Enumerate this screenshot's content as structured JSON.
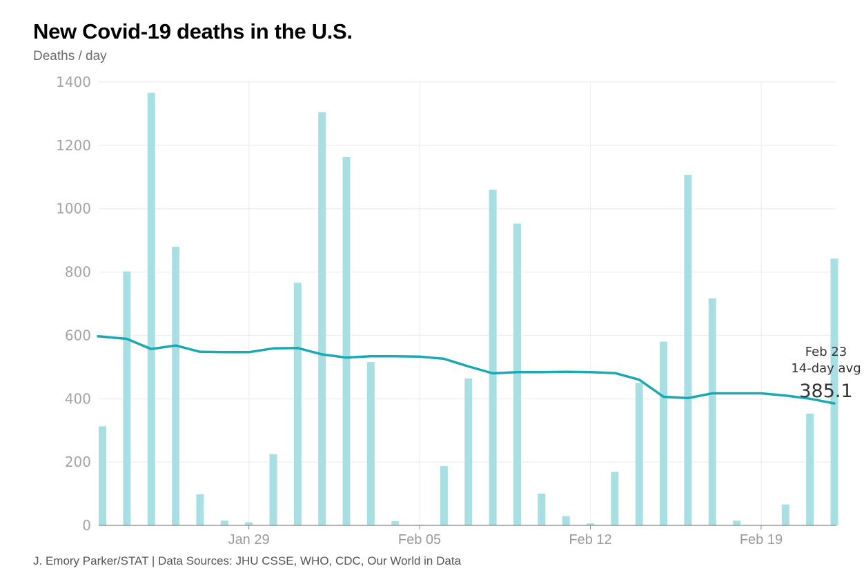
{
  "header": {
    "title": "New Covid-19 deaths in the U.S.",
    "subtitle": "Deaths / day"
  },
  "footer": {
    "credit": "J. Emory Parker/STAT | Data Sources: JHU CSSE, WHO, CDC, Our World in Data"
  },
  "colors": {
    "bar": "#a8dfe3",
    "line": "#1aa9b3",
    "grid": "#eeeeee",
    "axis": "#888888"
  },
  "chart_data": {
    "type": "bar",
    "title": "New Covid-19 deaths in the U.S.",
    "ylabel": "Deaths / day",
    "xlabel": "",
    "ylim": [
      0,
      1400
    ],
    "yticks": [
      0,
      200,
      400,
      600,
      800,
      1000,
      1200,
      1400
    ],
    "grid": true,
    "x": [
      "Jan 23",
      "Jan 24",
      "Jan 25",
      "Jan 26",
      "Jan 27",
      "Jan 28",
      "Jan 29",
      "Jan 30",
      "Jan 31",
      "Feb 01",
      "Feb 02",
      "Feb 03",
      "Feb 04",
      "Feb 05",
      "Feb 06",
      "Feb 07",
      "Feb 08",
      "Feb 09",
      "Feb 10",
      "Feb 11",
      "Feb 12",
      "Feb 13",
      "Feb 14",
      "Feb 15",
      "Feb 16",
      "Feb 17",
      "Feb 18",
      "Feb 19",
      "Feb 20",
      "Feb 21",
      "Feb 22"
    ],
    "xtick_labels": [
      {
        "label": "Jan 29",
        "index": 6
      },
      {
        "label": "Feb 05",
        "index": 13
      },
      {
        "label": "Feb 12",
        "index": 20
      },
      {
        "label": "Feb 19",
        "index": 27
      }
    ],
    "series": [
      {
        "name": "New deaths",
        "type": "bar",
        "values": [
          313,
          802,
          1366,
          880,
          98,
          15,
          10,
          225,
          766,
          1305,
          1163,
          516,
          13,
          2,
          187,
          464,
          1060,
          953,
          100,
          29,
          6,
          169,
          450,
          580,
          1106,
          717,
          15,
          0,
          66,
          353,
          843
        ]
      },
      {
        "name": "14-day avg",
        "type": "line",
        "values": [
          597,
          589,
          557,
          568,
          548,
          547,
          547,
          559,
          560,
          540,
          530,
          534,
          534,
          533,
          526,
          502,
          480,
          484,
          484,
          485,
          484,
          481,
          460,
          406,
          402,
          417,
          417,
          417,
          410,
          400,
          385.1
        ]
      }
    ],
    "annotation": {
      "date": "Feb 23",
      "label": "14-day avg",
      "value": "385.1"
    }
  }
}
